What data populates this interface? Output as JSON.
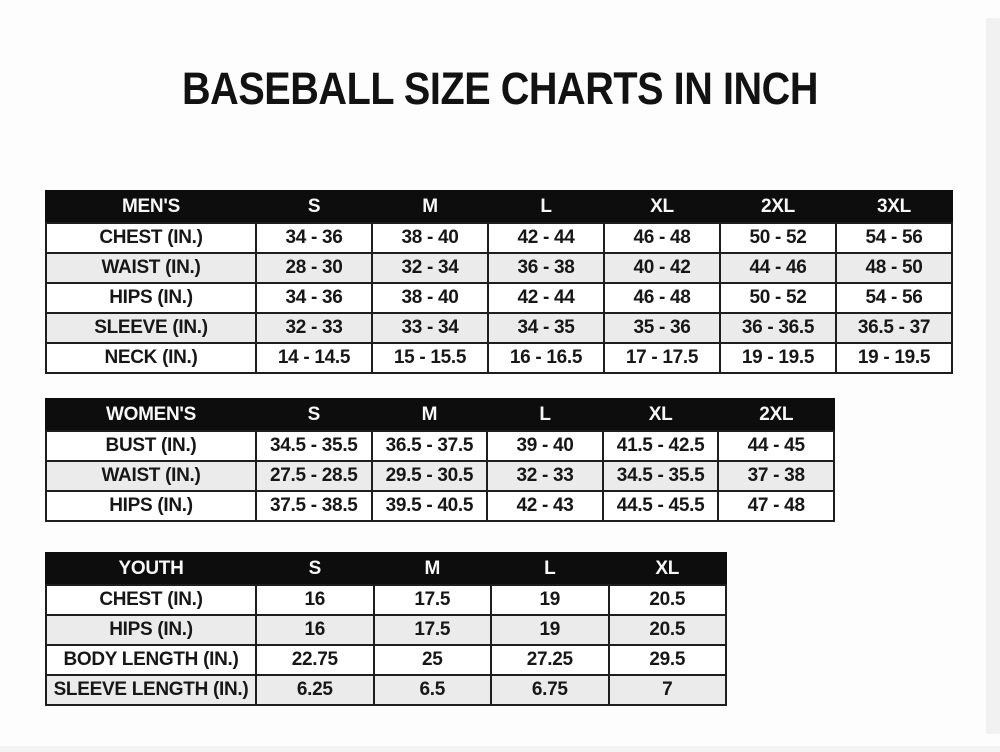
{
  "title": "BASEBALL SIZE CHARTS IN INCH",
  "colors": {
    "background": "#fdfdfd",
    "header_bg": "#0d0d0d",
    "header_text": "#f7f7f7",
    "row_alt": "#ebebeb",
    "border": "#1e1e1e",
    "text": "#171717"
  },
  "chart_data": [
    {
      "type": "table",
      "name": "mens-size-chart",
      "header": [
        "MEN'S",
        "S",
        "M",
        "L",
        "XL",
        "2XL",
        "3XL"
      ],
      "rows": [
        {
          "label": "CHEST (IN.)",
          "values": [
            "34 - 36",
            "38 - 40",
            "42 - 44",
            "46 - 48",
            "50 - 52",
            "54 - 56"
          ]
        },
        {
          "label": "WAIST (IN.)",
          "values": [
            "28 - 30",
            "32 - 34",
            "36 - 38",
            "40 - 42",
            "44 - 46",
            "48 - 50"
          ]
        },
        {
          "label": "HIPS (IN.)",
          "values": [
            "34 - 36",
            "38 - 40",
            "42 - 44",
            "46 - 48",
            "50 - 52",
            "54 - 56"
          ]
        },
        {
          "label": "SLEEVE (IN.)",
          "values": [
            "32 - 33",
            "33 - 34",
            "34 - 35",
            "35 - 36",
            "36 - 36.5",
            "36.5 - 37"
          ]
        },
        {
          "label": "NECK (IN.)",
          "values": [
            "14 - 14.5",
            "15 - 15.5",
            "16 - 16.5",
            "17 - 17.5",
            "19 - 19.5",
            "19 - 19.5"
          ]
        }
      ]
    },
    {
      "type": "table",
      "name": "womens-size-chart",
      "header": [
        "WOMEN'S",
        "S",
        "M",
        "L",
        "XL",
        "2XL"
      ],
      "rows": [
        {
          "label": "BUST (IN.)",
          "values": [
            "34.5 - 35.5",
            "36.5 - 37.5",
            "39 - 40",
            "41.5 - 42.5",
            "44 - 45"
          ]
        },
        {
          "label": "WAIST (IN.)",
          "values": [
            "27.5 - 28.5",
            "29.5 - 30.5",
            "32 - 33",
            "34.5 - 35.5",
            "37 - 38"
          ]
        },
        {
          "label": "HIPS (IN.)",
          "values": [
            "37.5 - 38.5",
            "39.5 - 40.5",
            "42 - 43",
            "44.5 - 45.5",
            "47 - 48"
          ]
        }
      ]
    },
    {
      "type": "table",
      "name": "youth-size-chart",
      "header": [
        "YOUTH",
        "S",
        "M",
        "L",
        "XL"
      ],
      "rows": [
        {
          "label": "CHEST (IN.)",
          "values": [
            "16",
            "17.5",
            "19",
            "20.5"
          ]
        },
        {
          "label": "HIPS (IN.)",
          "values": [
            "16",
            "17.5",
            "19",
            "20.5"
          ]
        },
        {
          "label": "BODY LENGTH (IN.)",
          "values": [
            "22.75",
            "25",
            "27.25",
            "29.5"
          ]
        },
        {
          "label": "SLEEVE LENGTH (IN.)",
          "values": [
            "6.25",
            "6.5",
            "6.75",
            "7"
          ]
        }
      ]
    }
  ]
}
